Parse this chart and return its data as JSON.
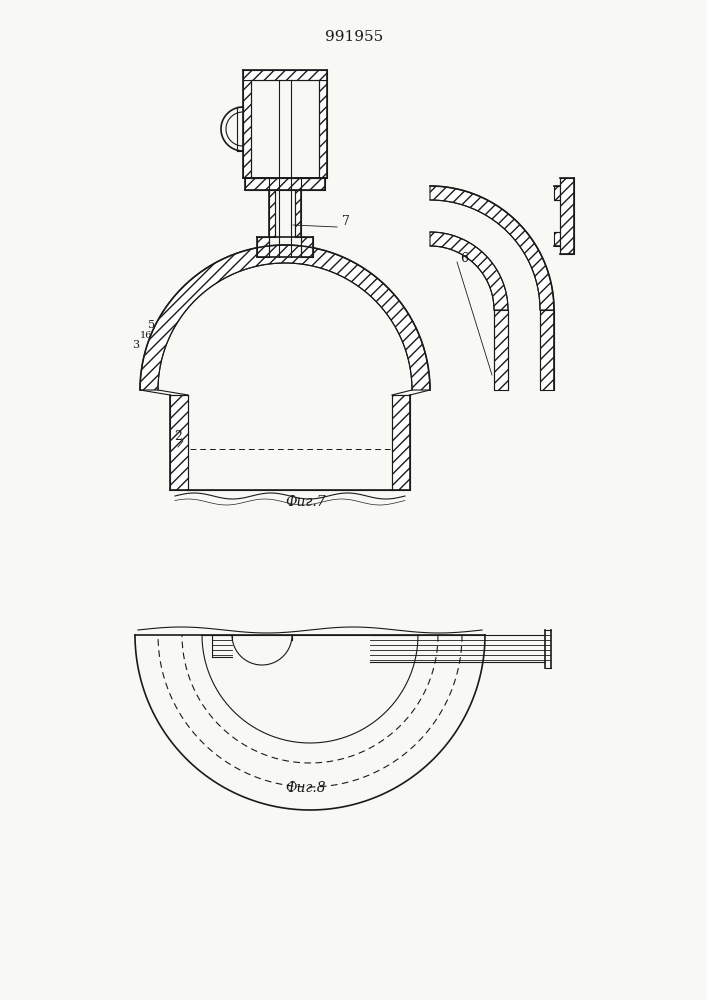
{
  "title": "991955",
  "fig7_label": "Фиг.7",
  "fig8_label": "Фиг.8",
  "label_2": "2",
  "label_3": "3",
  "label_5": "5",
  "label_6": "6",
  "label_7": "7",
  "label_16": "16",
  "bg_color": "#f8f8f5",
  "line_color": "#1a1a1a",
  "white": "#ffffff"
}
